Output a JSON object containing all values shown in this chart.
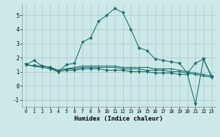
{
  "xlabel": "Humidex (Indice chaleur)",
  "bg_color": "#cde8e8",
  "grid_color": "#aacccc",
  "line_color": "#1a6b6b",
  "xlim": [
    -0.5,
    23.5
  ],
  "ylim": [
    -1.5,
    5.8
  ],
  "yticks": [
    -1,
    0,
    1,
    2,
    3,
    4,
    5
  ],
  "xticks": [
    0,
    1,
    2,
    3,
    4,
    5,
    6,
    7,
    8,
    9,
    10,
    11,
    12,
    13,
    14,
    15,
    16,
    17,
    18,
    19,
    20,
    21,
    22,
    23
  ],
  "series": [
    {
      "x": [
        0,
        1,
        2,
        3,
        4,
        5,
        6,
        7,
        8,
        9,
        10,
        11,
        12,
        13,
        14,
        15,
        16,
        17,
        18,
        19,
        20,
        21,
        22,
        23
      ],
      "y": [
        1.5,
        1.8,
        1.4,
        1.3,
        1.0,
        1.5,
        1.6,
        3.1,
        3.4,
        4.6,
        5.0,
        5.5,
        5.2,
        4.0,
        2.7,
        2.5,
        1.9,
        1.8,
        1.7,
        1.6,
        0.9,
        1.6,
        1.9,
        0.7
      ],
      "marker": "*",
      "ms": 3.5
    },
    {
      "x": [
        0,
        1,
        2,
        3,
        4,
        5,
        6,
        7,
        8,
        9,
        10,
        11,
        12,
        13,
        14,
        15,
        16,
        17,
        18,
        19,
        20,
        21,
        22,
        23
      ],
      "y": [
        1.5,
        1.4,
        1.4,
        1.3,
        1.1,
        1.2,
        1.3,
        1.4,
        1.4,
        1.4,
        1.4,
        1.4,
        1.3,
        1.3,
        1.3,
        1.3,
        1.2,
        1.2,
        1.2,
        1.1,
        1.0,
        0.9,
        0.8,
        0.7
      ],
      "marker": "+",
      "ms": 3
    },
    {
      "x": [
        0,
        1,
        2,
        3,
        4,
        5,
        6,
        7,
        8,
        9,
        10,
        11,
        12,
        13,
        14,
        15,
        16,
        17,
        18,
        19,
        20,
        21,
        22,
        23
      ],
      "y": [
        1.5,
        1.4,
        1.4,
        1.3,
        1.1,
        1.2,
        1.2,
        1.3,
        1.3,
        1.3,
        1.3,
        1.3,
        1.2,
        1.2,
        1.2,
        1.1,
        1.1,
        1.1,
        1.0,
        1.0,
        0.9,
        0.8,
        0.7,
        0.6
      ],
      "marker": "+",
      "ms": 3
    },
    {
      "x": [
        0,
        1,
        2,
        3,
        4,
        5,
        6,
        7,
        8,
        9,
        10,
        11,
        12,
        13,
        14,
        15,
        16,
        17,
        18,
        19,
        20,
        21,
        22,
        23
      ],
      "y": [
        1.5,
        1.4,
        1.3,
        1.2,
        1.0,
        1.1,
        1.1,
        1.2,
        1.2,
        1.2,
        1.1,
        1.1,
        1.1,
        1.0,
        1.0,
        1.0,
        0.9,
        0.9,
        0.9,
        0.8,
        0.8,
        -1.3,
        1.9,
        0.6
      ],
      "marker": "v",
      "ms": 3
    }
  ]
}
